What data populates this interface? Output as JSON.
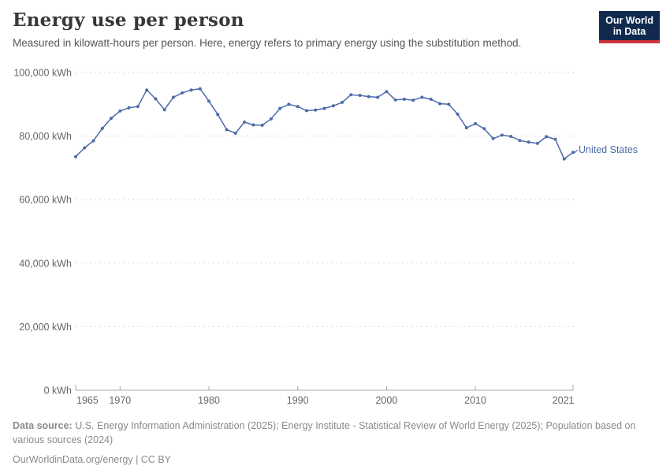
{
  "header": {
    "title": "Energy use per person",
    "subtitle": "Measured in kilowatt-hours per person. Here, energy refers to primary energy using the substitution method.",
    "logo_line1": "Our World",
    "logo_line2": "in Data"
  },
  "chart_data": {
    "type": "line",
    "title": "Energy use per person",
    "unit": "kWh",
    "xlim": [
      1965,
      2021
    ],
    "ylim": [
      0,
      100000
    ],
    "grid": "horizontal-dashed",
    "legend_position": "end-of-line-label",
    "x_ticks": [
      {
        "value": 1965,
        "label": "1965"
      },
      {
        "value": 1970,
        "label": "1970"
      },
      {
        "value": 1980,
        "label": "1980"
      },
      {
        "value": 1990,
        "label": "1990"
      },
      {
        "value": 2000,
        "label": "2000"
      },
      {
        "value": 2010,
        "label": "2010"
      },
      {
        "value": 2021,
        "label": "2021"
      }
    ],
    "y_ticks": [
      {
        "value": 0,
        "label": "0 kWh"
      },
      {
        "value": 20000,
        "label": "20,000 kWh"
      },
      {
        "value": 40000,
        "label": "40,000 kWh"
      },
      {
        "value": 60000,
        "label": "60,000 kWh"
      },
      {
        "value": 80000,
        "label": "80,000 kWh"
      },
      {
        "value": 100000,
        "label": "100,000 kWh"
      }
    ],
    "series": [
      {
        "name": "United States",
        "color": "#4C6BA8",
        "x": [
          1965,
          1966,
          1967,
          1968,
          1969,
          1970,
          1971,
          1972,
          1973,
          1974,
          1975,
          1976,
          1977,
          1978,
          1979,
          1980,
          1981,
          1982,
          1983,
          1984,
          1985,
          1986,
          1987,
          1988,
          1989,
          1990,
          1991,
          1992,
          1993,
          1994,
          1995,
          1996,
          1997,
          1998,
          1999,
          2000,
          2001,
          2002,
          2003,
          2004,
          2005,
          2006,
          2007,
          2008,
          2009,
          2010,
          2011,
          2012,
          2013,
          2014,
          2015,
          2016,
          2017,
          2018,
          2019,
          2020,
          2021
        ],
        "values": [
          73500,
          76300,
          78500,
          82400,
          85600,
          87900,
          88900,
          89300,
          94500,
          91700,
          88300,
          92200,
          93600,
          94500,
          94900,
          91000,
          86800,
          82000,
          80900,
          84400,
          83500,
          83400,
          85400,
          88700,
          90000,
          89300,
          88000,
          88200,
          88700,
          89500,
          90600,
          93000,
          92800,
          92400,
          92200,
          94000,
          91400,
          91600,
          91300,
          92200,
          91600,
          90200,
          90000,
          86900,
          82600,
          83900,
          82300,
          79200,
          80300,
          79900,
          78600,
          78100,
          77700,
          79800,
          79000,
          72800,
          74900
        ]
      }
    ]
  },
  "footer": {
    "source_label": "Data source:",
    "source_text": " U.S. Energy Information Administration (2025); Energy Institute - Statistical Review of World Energy (2025); Population based on various sources (2024)",
    "link_text": "OurWorldinData.org/energy | CC BY"
  },
  "colors": {
    "line": "#4C6BA8",
    "gridline": "#dadada",
    "axis": "#a8a8a8",
    "tick_text": "#666666",
    "title_text": "#383838",
    "subtitle_text": "#565656",
    "footer_text": "#8a8a8a",
    "logo_bg": "#102a4e",
    "logo_red": "#d0343a"
  }
}
